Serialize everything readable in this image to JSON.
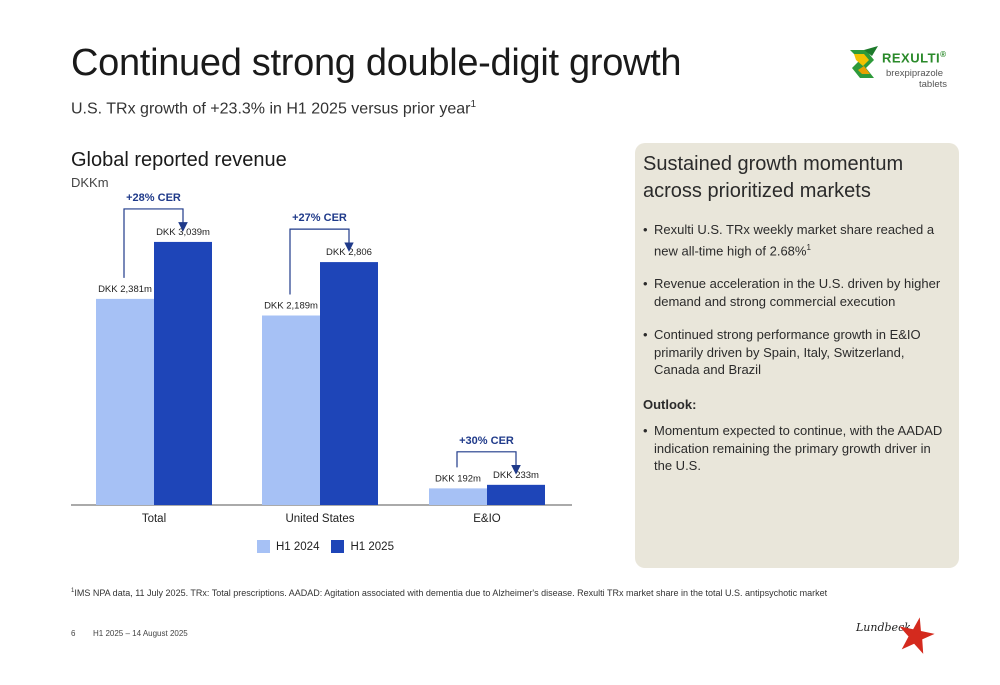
{
  "header": {
    "title": "Continued strong double-digit growth",
    "subtitle": "U.S. TRx growth of +23.3% in H1 2025 versus prior year",
    "subtitle_sup": "1"
  },
  "brand": {
    "name": "REXULTI",
    "tm": "®",
    "line1": "brexpiprazole",
    "line2": "tablets",
    "color": "#2a8a2a"
  },
  "chart_heading": {
    "title": "Global reported revenue",
    "unit": "DKKm"
  },
  "chart_data": {
    "type": "bar",
    "title": "Global reported revenue",
    "ylabel": "DKKm",
    "categories": [
      "Total",
      "United States",
      "E&IO"
    ],
    "series": [
      {
        "name": "H1 2024",
        "color": "#a6c1f5",
        "values": [
          2381,
          2189,
          192
        ],
        "labels": [
          "DKK 2,381m",
          "DKK 2,189m",
          "DKK 192m"
        ]
      },
      {
        "name": "H1 2025",
        "color": "#1e45b8",
        "values": [
          3039,
          2806,
          233
        ],
        "labels": [
          "DKK 3,039m",
          "DKK 2,806",
          "DKK 233m"
        ]
      }
    ],
    "growth": [
      "+28% CER",
      "+27% CER",
      "+30% CER"
    ],
    "ylim": [
      0,
      3350
    ],
    "grid": false,
    "legend": "bottom"
  },
  "panel": {
    "title": "Sustained growth momentum across prioritized markets",
    "bullets": [
      {
        "text": "Rexulti U.S. TRx weekly market share reached a new all-time high of 2.68%",
        "sup": "1"
      },
      {
        "text": "Revenue acceleration in the U.S. driven by higher demand and strong commercial execution"
      },
      {
        "text": "Continued strong performance growth in E&IO primarily driven by Spain, Italy, Switzerland, Canada and Brazil"
      }
    ],
    "outlook_heading": "Outlook:",
    "outlook_bullets": [
      {
        "text": "Momentum expected to continue, with the AADAD indication remaining the primary growth driver in the U.S."
      }
    ],
    "background": "#e9e6da"
  },
  "footer": {
    "footnote_sup": "1",
    "footnote": "IMS NPA data, 11 July 2025. TRx: Total prescriptions. AADAD: Agitation associated with dementia due to Alzheimer's disease. Rexulti TRx market share in the total U.S. antipsychotic market",
    "page": "6",
    "date": "H1 2025 – 14 August 2025"
  },
  "corporate": {
    "name": "Lundbeck",
    "star_color": "#d42a1e"
  },
  "icons": [
    "rexulti-logo-icon",
    "lundbeck-star-icon",
    "growth-arrow-icon"
  ]
}
